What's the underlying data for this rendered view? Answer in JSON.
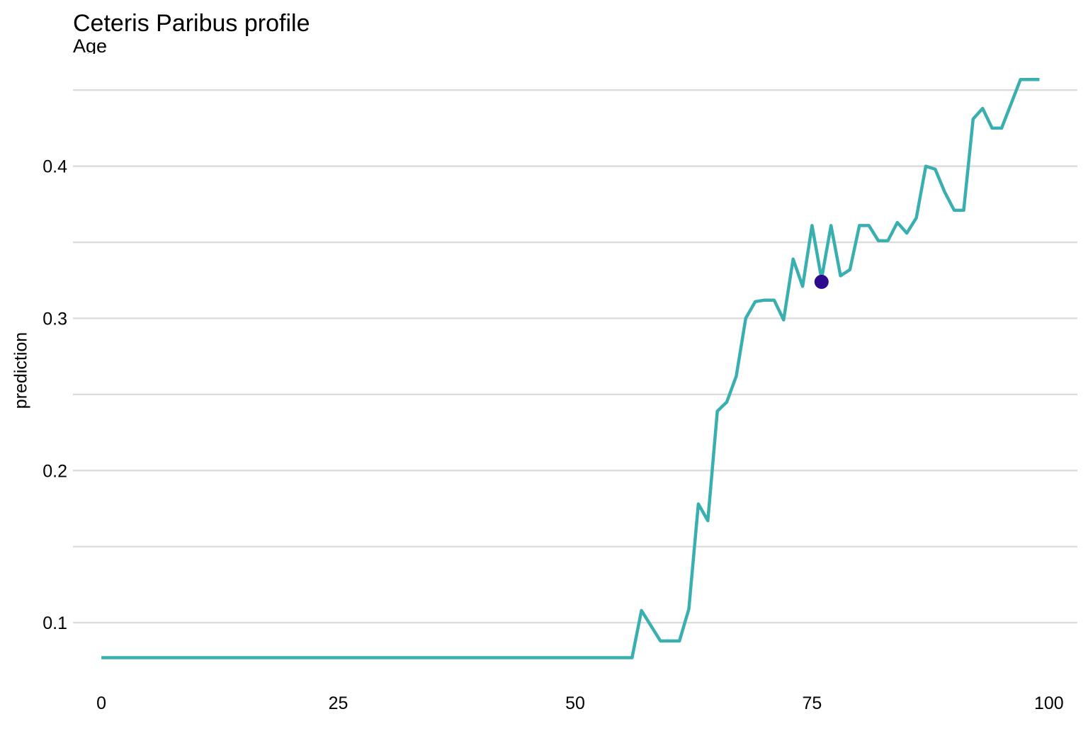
{
  "chart_data": {
    "type": "line",
    "title": "Ceteris Paribus profile",
    "subtitle": "Age",
    "xlabel": "",
    "ylabel": "prediction",
    "xlim": [
      -3,
      103
    ],
    "ylim": [
      0.06,
      0.465
    ],
    "x_ticks": [
      "0",
      "25",
      "50",
      "75",
      "100"
    ],
    "x_tick_values": [
      0,
      25,
      50,
      75,
      100
    ],
    "y_ticks": [
      "0.1",
      "0.2",
      "0.3",
      "0.4"
    ],
    "y_tick_values": [
      0.1,
      0.2,
      0.3,
      0.4
    ],
    "y_minor_gridlines": [
      0.15,
      0.25,
      0.35,
      0.45
    ],
    "grid": true,
    "series": [
      {
        "color": "#3aafb0",
        "x": [
          0,
          56,
          57,
          58,
          59,
          60,
          61,
          62,
          63,
          64,
          65,
          66,
          67,
          68,
          69,
          70,
          71,
          72,
          73,
          74,
          75,
          76,
          77,
          78,
          79,
          80,
          81,
          82,
          83,
          84,
          85,
          86,
          87,
          88,
          89,
          90,
          91,
          92,
          93,
          94,
          95,
          96,
          97,
          99
        ],
        "y": [
          0.077,
          0.077,
          0.108,
          0.098,
          0.088,
          0.088,
          0.088,
          0.109,
          0.178,
          0.167,
          0.239,
          0.245,
          0.262,
          0.3,
          0.311,
          0.312,
          0.312,
          0.299,
          0.339,
          0.321,
          0.361,
          0.326,
          0.361,
          0.328,
          0.332,
          0.361,
          0.361,
          0.351,
          0.351,
          0.363,
          0.356,
          0.366,
          0.4,
          0.398,
          0.383,
          0.371,
          0.371,
          0.431,
          0.438,
          0.425,
          0.425,
          0.441,
          0.457,
          0.457
        ]
      }
    ],
    "observation": {
      "x": 76,
      "y": 0.324,
      "color": "#2e0a8f"
    }
  }
}
